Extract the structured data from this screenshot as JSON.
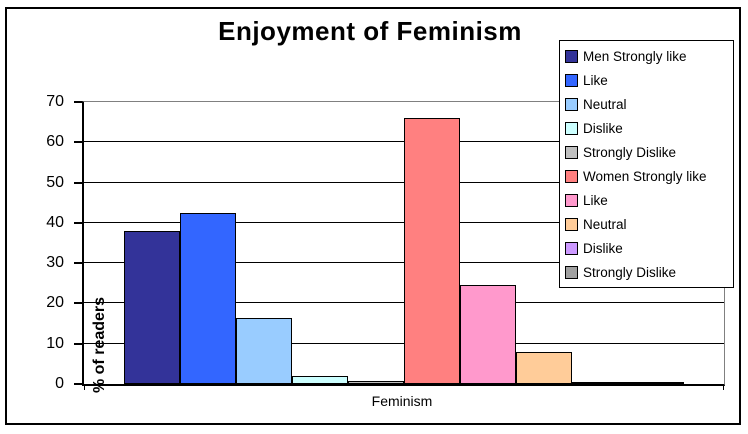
{
  "window": {
    "background_color": "#FFFFFF",
    "border_color": "#000000"
  },
  "chart_data": {
    "type": "bar",
    "title": "Enjoyment of Feminism",
    "xlabel": "Feminism",
    "ylabel": "% of readers",
    "ylim": [
      0,
      70
    ],
    "yticks": [
      0,
      10,
      20,
      30,
      40,
      50,
      60,
      70
    ],
    "grid": true,
    "legend_position": "right-overlay",
    "categories": [
      "Feminism"
    ],
    "series": [
      {
        "name": "Men Strongly like",
        "color": "#333399",
        "values": [
          38
        ]
      },
      {
        "name": "Like",
        "color": "#3366FF",
        "values": [
          42.5
        ]
      },
      {
        "name": "Neutral",
        "color": "#99CCFF",
        "values": [
          16.5
        ]
      },
      {
        "name": "Dislike",
        "color": "#CCFFFF",
        "values": [
          2
        ]
      },
      {
        "name": "Strongly Dislike",
        "color": "#C0C0C0",
        "values": [
          0.7
        ]
      },
      {
        "name": "Women Strongly like",
        "color": "#FF8080",
        "values": [
          66
        ]
      },
      {
        "name": "Like",
        "color": "#FF99CC",
        "values": [
          24.5
        ]
      },
      {
        "name": "Neutral",
        "color": "#FFCC99",
        "values": [
          8
        ]
      },
      {
        "name": "Dislike",
        "color": "#CC99FF",
        "values": [
          0.5
        ]
      },
      {
        "name": "Strongly Dislike",
        "color": "#A0A0A0",
        "values": [
          0.5
        ]
      }
    ]
  }
}
